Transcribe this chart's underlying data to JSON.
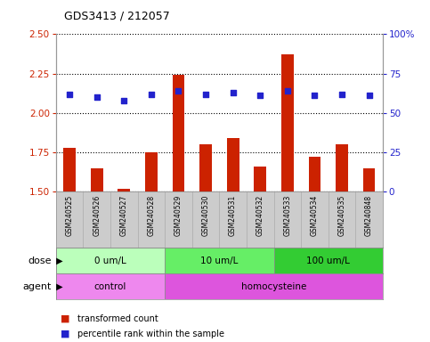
{
  "title": "GDS3413 / 212057",
  "samples": [
    "GSM240525",
    "GSM240526",
    "GSM240527",
    "GSM240528",
    "GSM240529",
    "GSM240530",
    "GSM240531",
    "GSM240532",
    "GSM240533",
    "GSM240534",
    "GSM240535",
    "GSM240848"
  ],
  "transformed_count": [
    1.78,
    1.65,
    1.52,
    1.75,
    2.24,
    1.8,
    1.84,
    1.66,
    2.37,
    1.72,
    1.8,
    1.65
  ],
  "percentile_rank": [
    62,
    60,
    58,
    62,
    64,
    62,
    63,
    61,
    64,
    61,
    62,
    61
  ],
  "ylim_left": [
    1.5,
    2.5
  ],
  "ylim_right": [
    0,
    100
  ],
  "yticks_left": [
    1.5,
    1.75,
    2.0,
    2.25,
    2.5
  ],
  "yticks_right": [
    0,
    25,
    50,
    75,
    100
  ],
  "ytick_labels_right": [
    "0",
    "25",
    "50",
    "75",
    "100%"
  ],
  "bar_color": "#cc2200",
  "dot_color": "#2222cc",
  "dose_groups": [
    {
      "label": "0 um/L",
      "start": 0,
      "end": 4,
      "color": "#bbffbb"
    },
    {
      "label": "10 um/L",
      "start": 4,
      "end": 8,
      "color": "#66ee66"
    },
    {
      "label": "100 um/L",
      "start": 8,
      "end": 12,
      "color": "#33cc33"
    }
  ],
  "agent_groups": [
    {
      "label": "control",
      "start": 0,
      "end": 4,
      "color": "#ee88ee"
    },
    {
      "label": "homocysteine",
      "start": 4,
      "end": 12,
      "color": "#dd55dd"
    }
  ],
  "dose_label": "dose",
  "agent_label": "agent",
  "legend_bar_label": "transformed count",
  "legend_dot_label": "percentile rank within the sample",
  "bar_color_legend": "#cc2200",
  "dot_color_legend": "#2222cc",
  "grid_style": "dotted",
  "grid_color": "#000000",
  "background_color": "#ffffff",
  "sample_bg_color": "#cccccc",
  "tick_label_color_left": "#cc2200",
  "tick_label_color_right": "#2222cc"
}
